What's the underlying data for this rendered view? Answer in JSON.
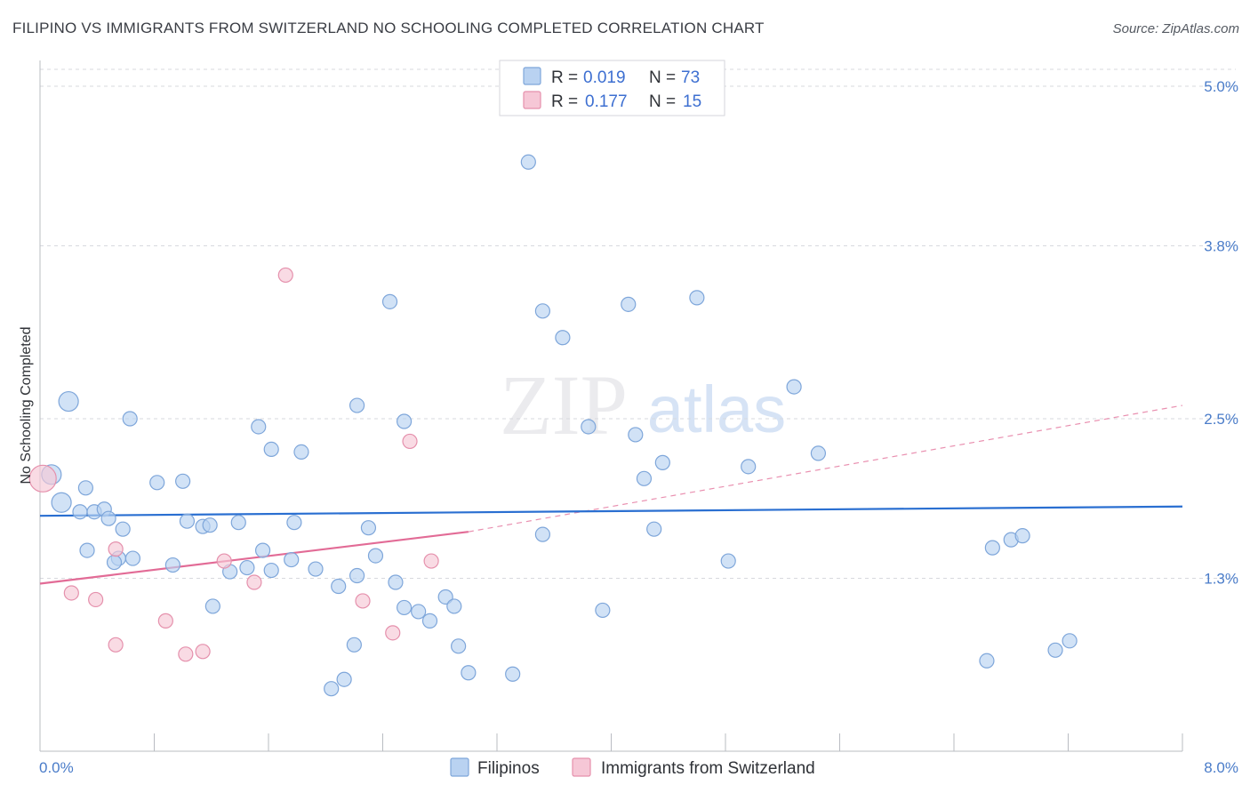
{
  "title": "FILIPINO VS IMMIGRANTS FROM SWITZERLAND NO SCHOOLING COMPLETED CORRELATION CHART",
  "source": {
    "prefix": "Source:",
    "site": "ZipAtlas.com"
  },
  "watermark": {
    "zip": "ZIP",
    "atlas": "atlas"
  },
  "colors": {
    "filipino_fill": "#b9d2f1",
    "filipino_stroke": "#7ea6da",
    "filipino_line": "#2a6fd1",
    "swiss_fill": "#f6c7d6",
    "swiss_stroke": "#e590ac",
    "swiss_line": "#e26b96",
    "tick_label": "#4a7cc9",
    "grid": "#d7d9de"
  },
  "chart_data": {
    "type": "scatter",
    "xlabel": "",
    "ylabel": "No Schooling Completed",
    "xlim": [
      0.0,
      8.0
    ],
    "ylim": [
      0.0,
      5.0
    ],
    "x_tick_labels": [
      "0.0%",
      "8.0%"
    ],
    "y_ticks": [
      {
        "value": 5.0,
        "label": "5.0%"
      },
      {
        "value": 3.8,
        "label": "3.8%"
      },
      {
        "value": 2.5,
        "label": "2.5%"
      },
      {
        "value": 1.3,
        "label": "1.3%"
      }
    ],
    "grid": "horizontal dashed",
    "legend_top": [
      {
        "r_label": "R =",
        "r": "0.019",
        "n_label": "N =",
        "n": "73"
      },
      {
        "r_label": "R =",
        "r": "0.177",
        "n_label": "N =",
        "n": "15"
      }
    ],
    "series": [
      {
        "name": "Filipinos",
        "trend": {
          "x": [
            0.0,
            8.0
          ],
          "y": [
            1.77,
            1.84
          ]
        },
        "points": [
          [
            0.08,
            2.08,
            1
          ],
          [
            0.2,
            2.63,
            1
          ],
          [
            0.15,
            1.87,
            1
          ],
          [
            0.28,
            1.8,
            0
          ],
          [
            0.38,
            1.8,
            0
          ],
          [
            0.32,
            1.98,
            0
          ],
          [
            0.33,
            1.51,
            0
          ],
          [
            0.45,
            1.82,
            0
          ],
          [
            0.48,
            1.75,
            0
          ],
          [
            0.55,
            1.45,
            0
          ],
          [
            0.52,
            1.42,
            0
          ],
          [
            0.58,
            1.67,
            0
          ],
          [
            0.65,
            1.45,
            0
          ],
          [
            0.82,
            2.02,
            0
          ],
          [
            0.93,
            1.4,
            0
          ],
          [
            1.0,
            2.03,
            0
          ],
          [
            1.03,
            1.73,
            0
          ],
          [
            1.14,
            1.69,
            0
          ],
          [
            1.19,
            1.7,
            0
          ],
          [
            1.21,
            1.09,
            0
          ],
          [
            1.33,
            1.35,
            0
          ],
          [
            1.39,
            1.72,
            0
          ],
          [
            1.45,
            1.38,
            0
          ],
          [
            1.56,
            1.51,
            0
          ],
          [
            1.62,
            1.36,
            0
          ],
          [
            1.62,
            2.27,
            0
          ],
          [
            1.76,
            1.44,
            0
          ],
          [
            1.78,
            1.72,
            0
          ],
          [
            1.83,
            2.25,
            0
          ],
          [
            1.93,
            1.37,
            0
          ],
          [
            2.04,
            0.47,
            0
          ],
          [
            2.09,
            1.24,
            0
          ],
          [
            2.13,
            0.54,
            0
          ],
          [
            2.2,
            0.8,
            0
          ],
          [
            2.22,
            1.32,
            0
          ],
          [
            2.22,
            2.6,
            0
          ],
          [
            2.3,
            1.68,
            0
          ],
          [
            2.35,
            1.47,
            0
          ],
          [
            2.45,
            3.38,
            0
          ],
          [
            2.49,
            1.27,
            0
          ],
          [
            2.55,
            1.08,
            0
          ],
          [
            2.65,
            1.05,
            0
          ],
          [
            2.73,
            0.98,
            0
          ],
          [
            2.84,
            1.16,
            0
          ],
          [
            2.9,
            1.09,
            0
          ],
          [
            2.93,
            0.79,
            0
          ],
          [
            3.0,
            0.59,
            0
          ],
          [
            3.31,
            0.58,
            0
          ],
          [
            3.42,
            4.43,
            0
          ],
          [
            3.52,
            3.31,
            0
          ],
          [
            3.52,
            1.63,
            0
          ],
          [
            3.66,
            3.11,
            0
          ],
          [
            3.84,
            2.44,
            0
          ],
          [
            3.94,
            1.06,
            0
          ],
          [
            4.12,
            3.36,
            0
          ],
          [
            4.17,
            2.38,
            0
          ],
          [
            4.23,
            2.05,
            0
          ],
          [
            4.3,
            1.67,
            0
          ],
          [
            4.36,
            2.17,
            0
          ],
          [
            4.6,
            3.41,
            0
          ],
          [
            4.82,
            1.43,
            0
          ],
          [
            4.96,
            2.14,
            0
          ],
          [
            5.28,
            2.74,
            0
          ],
          [
            5.45,
            2.24,
            0
          ],
          [
            6.63,
            0.68,
            0
          ],
          [
            6.67,
            1.53,
            0
          ],
          [
            6.8,
            1.59,
            0
          ],
          [
            6.88,
            1.62,
            0
          ],
          [
            7.11,
            0.76,
            0
          ],
          [
            7.21,
            0.83,
            0
          ],
          [
            0.63,
            2.5,
            0
          ],
          [
            1.53,
            2.44,
            0
          ],
          [
            2.55,
            2.48,
            0
          ]
        ]
      },
      {
        "name": "Immigrants from Switzerland",
        "trend": {
          "x": [
            0.0,
            3.0
          ],
          "y": [
            1.26,
            1.65
          ]
        },
        "trend_extension": {
          "x": [
            3.0,
            8.0
          ],
          "y": [
            1.65,
            2.6
          ]
        },
        "points": [
          [
            0.02,
            2.05,
            1
          ],
          [
            0.22,
            1.19,
            0
          ],
          [
            0.39,
            1.14,
            0
          ],
          [
            0.53,
            0.8,
            0
          ],
          [
            0.53,
            1.52,
            0
          ],
          [
            0.88,
            0.98,
            0
          ],
          [
            1.02,
            0.73,
            0
          ],
          [
            1.14,
            0.75,
            0
          ],
          [
            1.29,
            1.43,
            0
          ],
          [
            1.5,
            1.27,
            0
          ],
          [
            1.72,
            3.58,
            0
          ],
          [
            2.26,
            1.13,
            0
          ],
          [
            2.47,
            0.89,
            0
          ],
          [
            2.59,
            2.33,
            0
          ],
          [
            2.74,
            1.43,
            0
          ]
        ]
      }
    ]
  }
}
